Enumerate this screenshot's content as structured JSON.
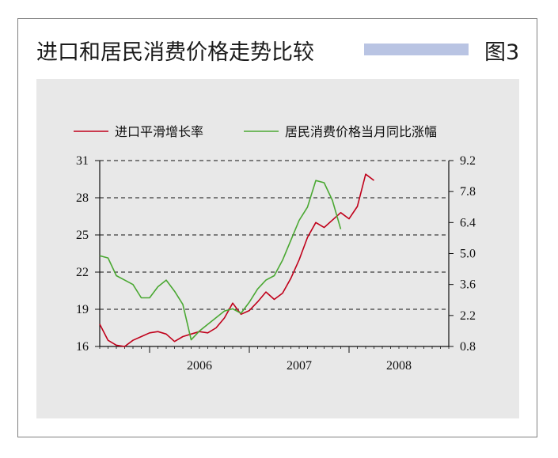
{
  "header": {
    "title": "进口和居民消费价格走势比较",
    "figure_label": "图3",
    "accent_bar_color": "#b9c4e3"
  },
  "chart_data": {
    "type": "line",
    "title": "进口和居民消费价格走势比较",
    "grid": "horizontal dashed",
    "legend_placement": "top",
    "x_axis": {
      "ticks": [
        "2006",
        "2007",
        "2008"
      ],
      "range": [
        "2005-07",
        "2009-01"
      ]
    },
    "y_left": {
      "ticks": [
        "31",
        "28",
        "25",
        "22",
        "19",
        "16"
      ],
      "range": [
        16,
        31
      ]
    },
    "y_right": {
      "ticks": [
        "9.2",
        "7.8",
        "6.4",
        "5.0",
        "3.6",
        "2.2",
        "0.8"
      ],
      "range": [
        0.8,
        9.2
      ]
    },
    "series": [
      {
        "name": "进口平滑增长率",
        "axis": "left",
        "color": "#c0001a",
        "points": [
          [
            "2005-07",
            17.8
          ],
          [
            "2005-08",
            16.5
          ],
          [
            "2005-09",
            16.1
          ],
          [
            "2005-10",
            16.0
          ],
          [
            "2005-11",
            16.5
          ],
          [
            "2005-12",
            16.8
          ],
          [
            "2006-01",
            17.1
          ],
          [
            "2006-02",
            17.2
          ],
          [
            "2006-03",
            17.0
          ],
          [
            "2006-04",
            16.4
          ],
          [
            "2006-05",
            16.8
          ],
          [
            "2006-06",
            17.0
          ],
          [
            "2006-07",
            17.2
          ],
          [
            "2006-08",
            17.1
          ],
          [
            "2006-09",
            17.5
          ],
          [
            "2006-10",
            18.3
          ],
          [
            "2006-11",
            19.5
          ],
          [
            "2006-12",
            18.6
          ],
          [
            "2007-01",
            18.9
          ],
          [
            "2007-02",
            19.6
          ],
          [
            "2007-03",
            20.4
          ],
          [
            "2007-04",
            19.8
          ],
          [
            "2007-05",
            20.3
          ],
          [
            "2007-06",
            21.5
          ],
          [
            "2007-07",
            23.0
          ],
          [
            "2007-08",
            24.8
          ],
          [
            "2007-09",
            26.0
          ],
          [
            "2007-10",
            25.6
          ],
          [
            "2007-11",
            26.2
          ],
          [
            "2007-12",
            26.8
          ],
          [
            "2008-01",
            26.3
          ],
          [
            "2008-02",
            27.3
          ],
          [
            "2008-03",
            29.9
          ],
          [
            "2008-04",
            29.4
          ]
        ]
      },
      {
        "name": "居民消费价格当月同比涨幅",
        "axis": "right",
        "color": "#4aa832",
        "points": [
          [
            "2005-07",
            4.9
          ],
          [
            "2005-08",
            4.8
          ],
          [
            "2005-09",
            4.0
          ],
          [
            "2005-10",
            3.8
          ],
          [
            "2005-11",
            3.6
          ],
          [
            "2005-12",
            3.0
          ],
          [
            "2006-01",
            3.0
          ],
          [
            "2006-02",
            3.5
          ],
          [
            "2006-03",
            3.8
          ],
          [
            "2006-04",
            3.3
          ],
          [
            "2006-05",
            2.7
          ],
          [
            "2006-06",
            1.1
          ],
          [
            "2006-07",
            1.5
          ],
          [
            "2006-08",
            1.8
          ],
          [
            "2006-09",
            2.1
          ],
          [
            "2006-10",
            2.4
          ],
          [
            "2006-11",
            2.5
          ],
          [
            "2006-12",
            2.3
          ],
          [
            "2007-01",
            2.8
          ],
          [
            "2007-02",
            3.4
          ],
          [
            "2007-03",
            3.8
          ],
          [
            "2007-04",
            4.0
          ],
          [
            "2007-05",
            4.7
          ],
          [
            "2007-06",
            5.6
          ],
          [
            "2007-07",
            6.5
          ],
          [
            "2007-08",
            7.1
          ],
          [
            "2007-09",
            8.3
          ],
          [
            "2007-10",
            8.2
          ],
          [
            "2007-11",
            7.4
          ],
          [
            "2007-12",
            6.1
          ]
        ]
      }
    ]
  }
}
